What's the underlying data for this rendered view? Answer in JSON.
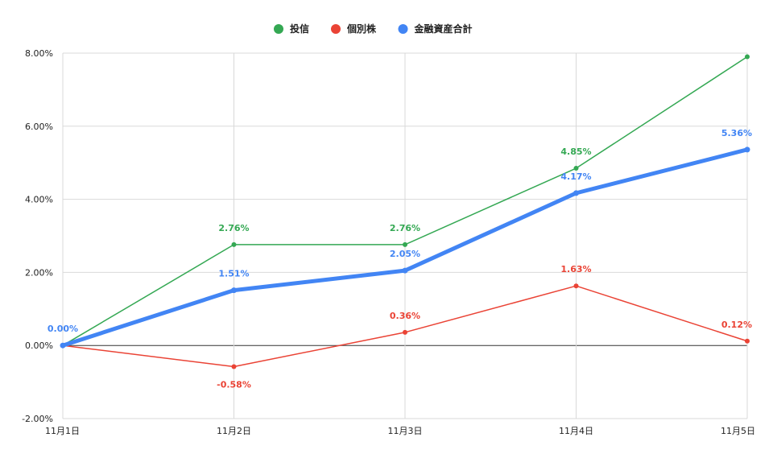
{
  "chart_data": {
    "type": "line",
    "title": "",
    "xlabel": "",
    "ylabel": "",
    "categories": [
      "11月1日",
      "11月2日",
      "11月3日",
      "11月4日",
      "11月5日"
    ],
    "y_ticks": [
      "-2.00%",
      "0.00%",
      "2.00%",
      "4.00%",
      "6.00%",
      "8.00%"
    ],
    "ylim": [
      -2,
      8
    ],
    "grid": true,
    "legend_position": "top",
    "series": [
      {
        "name": "投信",
        "color": "#34a853",
        "values": [
          0.0,
          2.76,
          2.76,
          4.85,
          7.9
        ],
        "data_labels": [
          "",
          "2.76%",
          "2.76%",
          "4.85%",
          ""
        ]
      },
      {
        "name": "個別株",
        "color": "#ea4335",
        "values": [
          0.0,
          -0.58,
          0.36,
          1.63,
          0.12
        ],
        "data_labels": [
          "",
          "-0.58%",
          "0.36%",
          "1.63%",
          "0.12%"
        ]
      },
      {
        "name": "金融資産合計",
        "color": "#4285f4",
        "values": [
          0.0,
          1.51,
          2.05,
          4.17,
          5.36
        ],
        "data_labels": [
          "0.00%",
          "1.51%",
          "2.05%",
          "4.17%",
          "5.36%"
        ]
      }
    ]
  }
}
